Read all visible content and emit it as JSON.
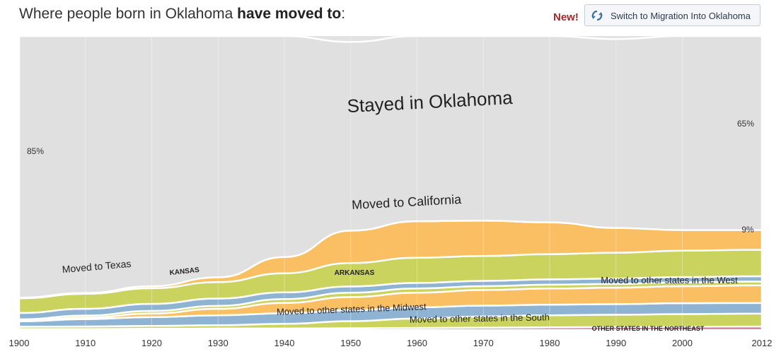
{
  "header": {
    "title_prefix": "Where people born in Oklahoma ",
    "title_bold": "have moved to",
    "title_suffix": ":",
    "new_label": "New!",
    "switch_button_label": "Switch to Migration Into Oklahoma",
    "switch_icon": "refresh-icon"
  },
  "colors": {
    "stayed": "#e0e0e0",
    "california": "#fbbf63",
    "texas": "#c9d35d",
    "kansas": "#8fb3d3",
    "arkansas": "#c9d35d",
    "west": "#fbbf63",
    "south": "#c9d35d",
    "midwest": "#8fb3d3",
    "northeast": "#c97b96"
  },
  "chart_data": {
    "type": "area",
    "title": "Stayed in Oklahoma",
    "xlabel": "",
    "ylabel": "",
    "x": [
      1900,
      1910,
      1920,
      1930,
      1940,
      1950,
      1960,
      1970,
      1980,
      1990,
      2000,
      2012
    ],
    "xlim": [
      1900,
      2012
    ],
    "ylim": [
      0,
      100
    ],
    "grid": "vertical",
    "series": [
      {
        "name": "Moved to other states in the Northeast",
        "label": "OTHER STATES IN THE NORTHEAST",
        "values": [
          0.3,
          0.3,
          0.4,
          0.5,
          0.5,
          0.6,
          0.7,
          0.8,
          0.9,
          1.0,
          1.1,
          1.2
        ]
      },
      {
        "name": "Moved to other states in the South",
        "label": "Moved to other states in the South",
        "values": [
          0.8,
          0.9,
          1.0,
          1.1,
          1.6,
          2.4,
          3.2,
          3.8,
          4.1,
          4.2,
          4.3,
          4.4
        ]
      },
      {
        "name": "Moved to other states in the Midwest",
        "label": "Moved to other states in the Midwest",
        "values": [
          1.8,
          2.5,
          3.0,
          3.4,
          3.6,
          3.7,
          3.8,
          3.7,
          3.6,
          3.6,
          3.7,
          3.6
        ]
      },
      {
        "name": "Moved to other states in the West",
        "label": "Moved to other states in the West",
        "values": [
          0.2,
          0.5,
          1.2,
          2.2,
          3.5,
          4.5,
          5.0,
          5.3,
          5.5,
          5.6,
          5.8,
          6.0
        ]
      },
      {
        "name": "Moved to Arkansas",
        "label": "ARKANSAS",
        "values": [
          0.5,
          0.7,
          0.9,
          1.0,
          1.3,
          1.5,
          1.4,
          1.3,
          1.3,
          1.3,
          1.3,
          1.3
        ]
      },
      {
        "name": "Moved to Kansas",
        "label": "KANSAS",
        "values": [
          2.2,
          2.3,
          2.4,
          2.5,
          2.3,
          2.1,
          1.9,
          1.8,
          1.8,
          1.8,
          1.8,
          1.8
        ]
      },
      {
        "name": "Moved to Texas",
        "label": "Moved to Texas",
        "values": [
          5.0,
          5.1,
          5.3,
          5.6,
          6.5,
          8.0,
          8.6,
          8.5,
          8.6,
          8.8,
          9.0,
          9.0
        ]
      },
      {
        "name": "Moved to California",
        "label": "Moved to California",
        "values": [
          0.2,
          0.3,
          0.7,
          1.6,
          5.5,
          11.0,
          12.4,
          12.0,
          10.8,
          8.4,
          7.0,
          6.7
        ]
      },
      {
        "name": "Stayed in Oklahoma",
        "label": "Stayed in Oklahoma",
        "values": [
          89.0,
          87.4,
          85.1,
          82.1,
          75.2,
          64.2,
          63.0,
          62.8,
          63.4,
          64.3,
          66.0,
          66.0
        ]
      }
    ],
    "annotations": [
      {
        "text": "85%"
      },
      {
        "text": "65%"
      },
      {
        "text": "9%"
      }
    ]
  }
}
